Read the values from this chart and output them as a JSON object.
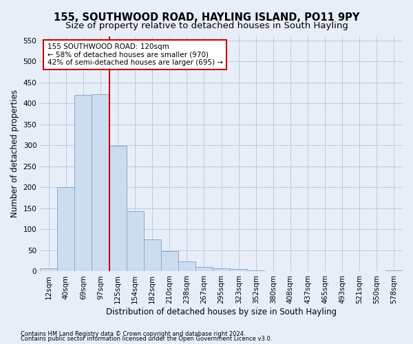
{
  "title": "155, SOUTHWOOD ROAD, HAYLING ISLAND, PO11 9PY",
  "subtitle": "Size of property relative to detached houses in South Hayling",
  "xlabel": "Distribution of detached houses by size in South Hayling",
  "ylabel": "Number of detached properties",
  "categories": [
    "12sqm",
    "40sqm",
    "69sqm",
    "97sqm",
    "125sqm",
    "154sqm",
    "182sqm",
    "210sqm",
    "238sqm",
    "267sqm",
    "295sqm",
    "323sqm",
    "352sqm",
    "380sqm",
    "408sqm",
    "437sqm",
    "465sqm",
    "493sqm",
    "521sqm",
    "550sqm",
    "578sqm"
  ],
  "values": [
    8,
    200,
    420,
    422,
    298,
    143,
    76,
    48,
    23,
    11,
    8,
    6,
    2,
    1,
    0,
    0,
    0,
    0,
    0,
    0,
    3
  ],
  "bar_color": "#ccddf0",
  "bar_edge_color": "#88aacc",
  "vline_color": "#cc0000",
  "annotation_text": "155 SOUTHWOOD ROAD: 120sqm\n← 58% of detached houses are smaller (970)\n42% of semi-detached houses are larger (695) →",
  "annotation_box_color": "white",
  "annotation_box_edge_color": "#cc0000",
  "ylim": [
    0,
    560
  ],
  "yticks": [
    0,
    50,
    100,
    150,
    200,
    250,
    300,
    350,
    400,
    450,
    500,
    550
  ],
  "footnote1": "Contains HM Land Registry data © Crown copyright and database right 2024.",
  "footnote2": "Contains public sector information licensed under the Open Government Licence v3.0.",
  "bg_color": "#e8eef8",
  "plot_bg_color": "#e8eef8",
  "grid_color": "#b8c4d8",
  "title_fontsize": 10.5,
  "subtitle_fontsize": 9.5,
  "axis_label_fontsize": 8.5,
  "tick_fontsize": 7.5,
  "annotation_fontsize": 7.5,
  "footnote_fontsize": 6.0
}
